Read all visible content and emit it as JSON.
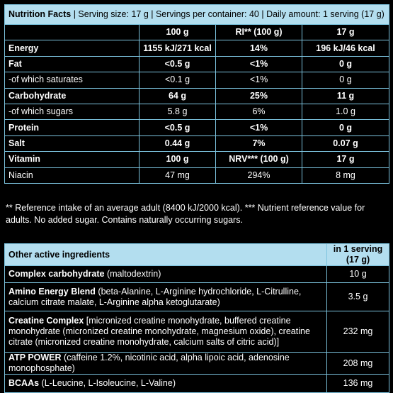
{
  "nutrition": {
    "title": "Nutrition Facts",
    "subtitle": "| Serving size: 17 g | Servings per container: 40 | Daily amount: 1 serving (17 g)",
    "rows": [
      [
        "",
        "100 g",
        "RI** (100 g)",
        "17 g"
      ],
      [
        "Energy",
        "1155 kJ/271 kcal",
        "14%",
        "196 kJ/46 kcal"
      ],
      [
        "Fat",
        "<0.5 g",
        "<1%",
        "0 g"
      ],
      [
        "-of which saturates",
        "<0.1 g",
        "<1%",
        "0 g"
      ],
      [
        "Carbohydrate",
        "64 g",
        "25%",
        "11 g"
      ],
      [
        "-of which sugars",
        "5.8 g",
        "6%",
        "1.0 g"
      ],
      [
        "Protein",
        "<0.5 g",
        "<1%",
        "0 g"
      ],
      [
        "Salt",
        "0.44 g",
        "7%",
        "0.07 g"
      ],
      [
        "Vitamin",
        "100 g",
        "NRV*** (100 g)",
        "17 g"
      ],
      [
        "Niacin",
        "47 mg",
        "294%",
        "8 mg"
      ]
    ]
  },
  "footnote": "** Reference intake of an average adult (8400 kJ/2000 kcal). *** Nutrient reference value for adults. No added sugar. Contains naturally occurring sugars.",
  "ingredients": {
    "header": [
      "Other active ingredients",
      "in 1 serving (17 g)"
    ],
    "rows": [
      {
        "name": "Complex carbohydrate",
        "desc": "(maltodextrin)",
        "amount": "10 g"
      },
      {
        "name": "Amino Energy Blend",
        "desc": "(beta-Alanine, L-Arginine hydrochloride, L-Citrulline, calcium citrate malate, L-Arginine alpha ketoglutarate)",
        "amount": "3.5 g"
      },
      {
        "name": "Creatine Complex",
        "desc": "[micronized creatine monohydrate, buffered creatine monohydrate (micronized creatine monohydrate, magnesium oxide), creatine citrate (micronized creatine monohydrate, calcium salts of citric acid)]",
        "amount": "232 mg"
      },
      {
        "name": "ATP POWER",
        "desc": "(caffeine 1.2%, nicotinic acid, alpha lipoic acid, adenosine monophosphate)",
        "amount": "208 mg"
      },
      {
        "name": "BCAAs",
        "desc": "(L-Leucine, L-Isoleucine, L-Valine)",
        "amount": "136 mg"
      }
    ]
  }
}
